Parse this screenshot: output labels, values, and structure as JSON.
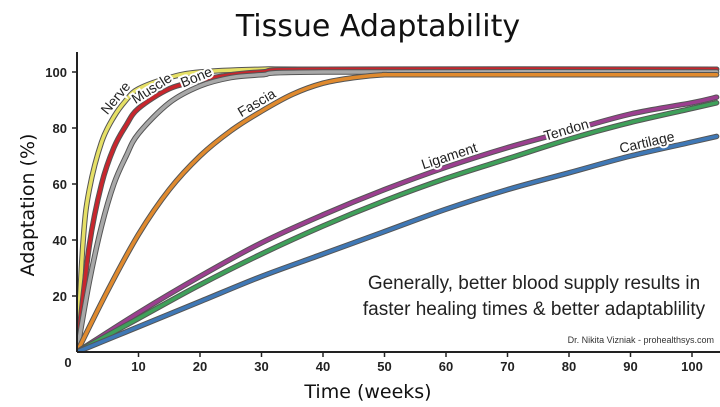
{
  "chart_data": {
    "type": "line",
    "title": "Tissue Adaptability",
    "xlabel": "Time (weeks)",
    "ylabel": "Adaptation (%)",
    "xlim": [
      0,
      104
    ],
    "ylim": [
      0,
      105
    ],
    "xticks": [
      0,
      10,
      20,
      30,
      40,
      50,
      60,
      70,
      80,
      90,
      100
    ],
    "yticks": [
      20,
      40,
      60,
      80,
      100
    ],
    "grid": false,
    "legend": "inline labels on curves",
    "annotation_lines": [
      "Generally, better blood supply results in",
      "faster healing times & better adaptablility"
    ],
    "credit": "Dr. Nikita Vizniak - prohealthsys.com",
    "series": [
      {
        "name": "Nerve",
        "color": "#e6e066",
        "x": [
          0,
          1,
          2,
          4,
          6,
          8,
          10,
          15,
          20,
          30,
          40,
          104
        ],
        "y": [
          0,
          40,
          58,
          75,
          84,
          90,
          94,
          98,
          100,
          101,
          101,
          101
        ],
        "label_x": 7.5
      },
      {
        "name": "Muscle",
        "color": "#c8262d",
        "x": [
          0,
          2,
          4,
          6,
          8,
          10,
          15,
          20,
          25,
          30,
          40,
          104
        ],
        "y": [
          0,
          38,
          60,
          73,
          81,
          87,
          94,
          97,
          99,
          100,
          101,
          101
        ],
        "label_x": 13
      },
      {
        "name": "Bone",
        "color": "#a8a8a8",
        "x": [
          0,
          2,
          4,
          6,
          8,
          10,
          15,
          20,
          25,
          30,
          40,
          104
        ],
        "y": [
          0,
          25,
          45,
          60,
          70,
          78,
          89,
          95,
          98,
          99,
          100,
          100
        ],
        "label_x": 20
      },
      {
        "name": "Fascia",
        "color": "#e08a2e",
        "x": [
          0,
          5,
          10,
          15,
          20,
          25,
          30,
          35,
          40,
          45,
          50,
          55,
          104
        ],
        "y": [
          0,
          22,
          42,
          58,
          70,
          79,
          86,
          92,
          96,
          98,
          99,
          99,
          99
        ],
        "label_x": 30
      },
      {
        "name": "Ligament",
        "color": "#9b3f8f",
        "x": [
          0,
          10,
          20,
          30,
          40,
          50,
          60,
          70,
          80,
          90,
          100,
          104
        ],
        "y": [
          0,
          14,
          27,
          39,
          49,
          58,
          66,
          73,
          79,
          85,
          89,
          91
        ],
        "label_x": 61
      },
      {
        "name": "Tendon",
        "color": "#3fa05a",
        "x": [
          0,
          10,
          20,
          30,
          40,
          50,
          60,
          70,
          80,
          90,
          100,
          104
        ],
        "y": [
          0,
          12,
          24,
          35,
          45,
          54,
          62,
          69,
          76,
          82,
          87,
          89
        ],
        "label_x": 80
      },
      {
        "name": "Cartilage",
        "color": "#3f78b6",
        "x": [
          0,
          10,
          20,
          30,
          40,
          50,
          60,
          70,
          80,
          90,
          100,
          104
        ],
        "y": [
          0,
          9,
          18,
          27,
          35,
          43,
          51,
          58,
          64,
          70,
          75,
          77
        ],
        "label_x": 93
      }
    ]
  }
}
